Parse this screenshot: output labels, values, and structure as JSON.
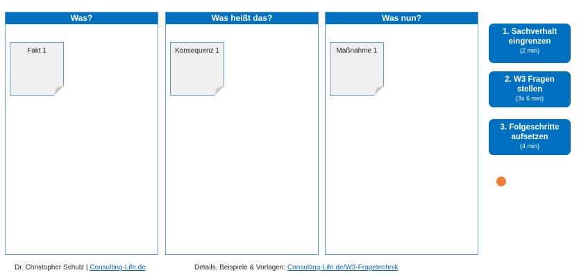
{
  "columns": [
    {
      "title": "Was?",
      "note": "Fakt 1"
    },
    {
      "title": "Was heißt das?",
      "note": "Konsequenz 1"
    },
    {
      "title": "Was nun?",
      "note": "Maßnahme 1"
    }
  ],
  "steps": [
    {
      "line1": "1. Sachverhalt",
      "line2": "eingrenzen",
      "time": "(2 min)"
    },
    {
      "line1": "2. W3 Fragen",
      "line2": "stellen",
      "time": "(3x 6 min)"
    },
    {
      "line1": "3. Folgeschritte",
      "line2": "aufsetzen",
      "time": "(4 min)"
    }
  ],
  "colors": {
    "header": "#0070c0",
    "dot": "#ed7d31"
  },
  "footer": {
    "author": "Dr. Christopher Schulz | ",
    "author_link": "Consulting-Life.de",
    "details": "Details, Beispiele & Vorlagen: ",
    "details_link": "Consulting-Life.de/W3-Fragetechnik"
  }
}
